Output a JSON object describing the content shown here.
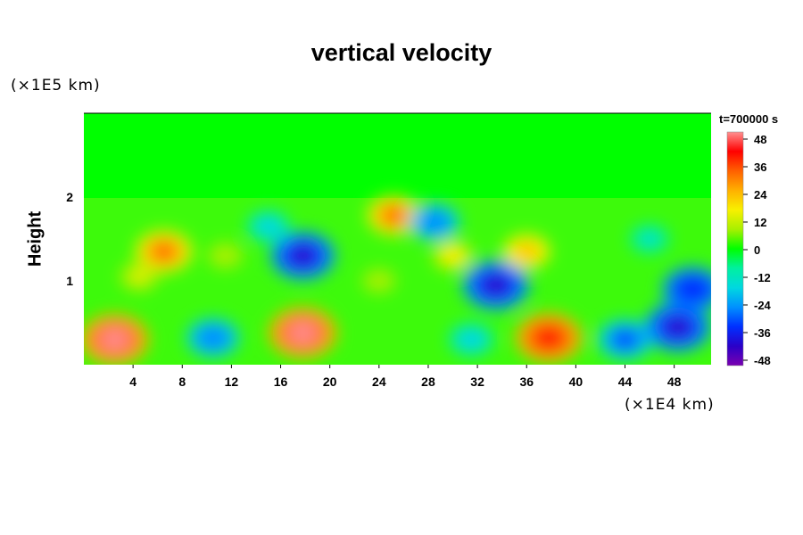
{
  "chart_data": {
    "type": "heatmap",
    "title": "vertical velocity",
    "ylabel": "Height",
    "xlabel": "",
    "x_unit_label": "(×1E4 km)",
    "y_unit_label": "(×1E5 km)",
    "time_label": "t=700000 s",
    "xlim": [
      0,
      51
    ],
    "ylim": [
      0,
      3
    ],
    "x_ticks": [
      4,
      8,
      12,
      16,
      20,
      24,
      28,
      32,
      36,
      40,
      44,
      48
    ],
    "y_ticks": [
      1,
      2
    ],
    "colorbar": {
      "ticks": [
        48,
        36,
        24,
        12,
        0,
        -12,
        -24,
        -36,
        -48
      ],
      "range": [
        -48,
        48
      ],
      "colors": [
        "#7a00b0",
        "#2a00c8",
        "#0030ff",
        "#0090ff",
        "#00d8e0",
        "#00f0a0",
        "#00ff00",
        "#a8f000",
        "#f8f000",
        "#ffb000",
        "#ff6000",
        "#ff0000",
        "#ff9090"
      ]
    },
    "features": [
      {
        "x": 2.5,
        "y": 0.3,
        "value": 44
      },
      {
        "x": 6.5,
        "y": 1.35,
        "value": 32
      },
      {
        "x": 4.5,
        "y": 1.05,
        "value": 14
      },
      {
        "x": 10.5,
        "y": 0.32,
        "value": -28
      },
      {
        "x": 17.8,
        "y": 0.38,
        "value": 44
      },
      {
        "x": 17.8,
        "y": 1.3,
        "value": -40
      },
      {
        "x": 15,
        "y": 1.65,
        "value": -18
      },
      {
        "x": 25.2,
        "y": 1.78,
        "value": 28
      },
      {
        "x": 28.5,
        "y": 1.7,
        "value": -26
      },
      {
        "x": 30,
        "y": 1.3,
        "value": 16
      },
      {
        "x": 33.5,
        "y": 0.95,
        "value": -42
      },
      {
        "x": 31.5,
        "y": 0.3,
        "value": -20
      },
      {
        "x": 36,
        "y": 1.35,
        "value": 22
      },
      {
        "x": 37.8,
        "y": 0.32,
        "value": 42
      },
      {
        "x": 44,
        "y": 0.3,
        "value": -30
      },
      {
        "x": 48.3,
        "y": 0.45,
        "value": -42
      },
      {
        "x": 49.5,
        "y": 0.9,
        "value": -36
      },
      {
        "x": 46,
        "y": 1.5,
        "value": -14
      },
      {
        "x": 11.5,
        "y": 1.3,
        "value": 10
      },
      {
        "x": 24,
        "y": 1.0,
        "value": 8
      }
    ]
  }
}
